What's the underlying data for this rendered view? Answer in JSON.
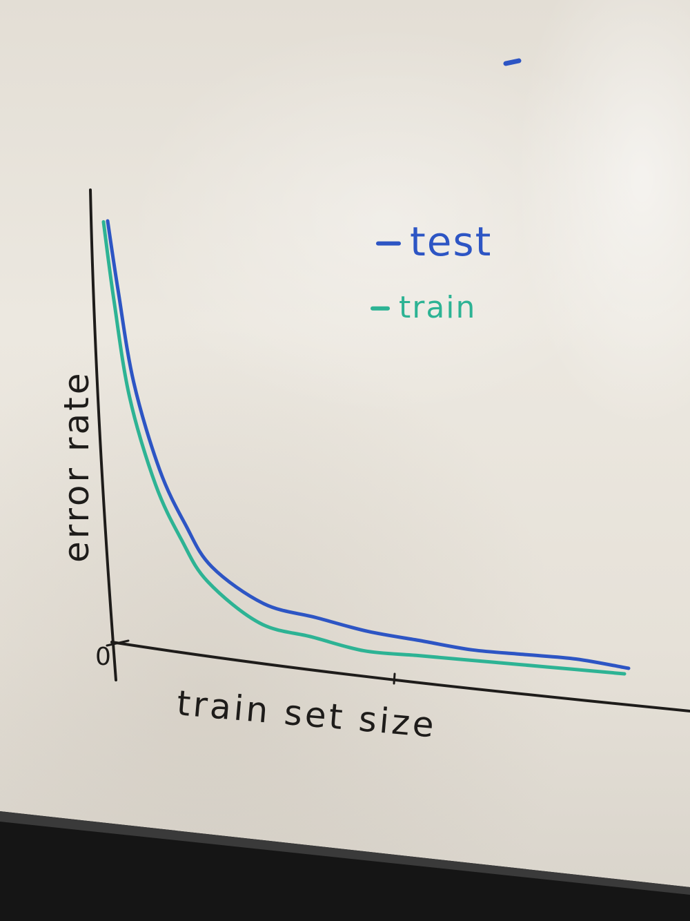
{
  "chart_data": {
    "type": "line",
    "title": "",
    "xlabel": "train set size",
    "ylabel": "error rate",
    "origin_label": "0",
    "grid": false,
    "legend_position": "top-right",
    "xlim": [
      0,
      1
    ],
    "ylim": [
      0,
      1
    ],
    "series": [
      {
        "name": "test",
        "color": "#2d55c4",
        "x": [
          0.0,
          0.02,
          0.05,
          0.1,
          0.15,
          0.2,
          0.3,
          0.4,
          0.5,
          0.6,
          0.7,
          0.8,
          0.9,
          1.0
        ],
        "y": [
          0.97,
          0.82,
          0.62,
          0.43,
          0.31,
          0.22,
          0.14,
          0.11,
          0.08,
          0.06,
          0.04,
          0.03,
          0.02,
          0.0
        ]
      },
      {
        "name": "train",
        "color": "#2db394",
        "x": [
          0.0,
          0.02,
          0.05,
          0.1,
          0.15,
          0.2,
          0.3,
          0.4,
          0.5,
          0.6,
          0.7,
          0.8,
          0.9,
          1.0
        ],
        "y": [
          0.98,
          0.81,
          0.6,
          0.41,
          0.29,
          0.2,
          0.11,
          0.08,
          0.05,
          0.04,
          0.03,
          0.02,
          0.01,
          0.0
        ]
      }
    ]
  },
  "colors": {
    "axis": "#1e1c1a",
    "stray_mark": "#2d55c4"
  }
}
